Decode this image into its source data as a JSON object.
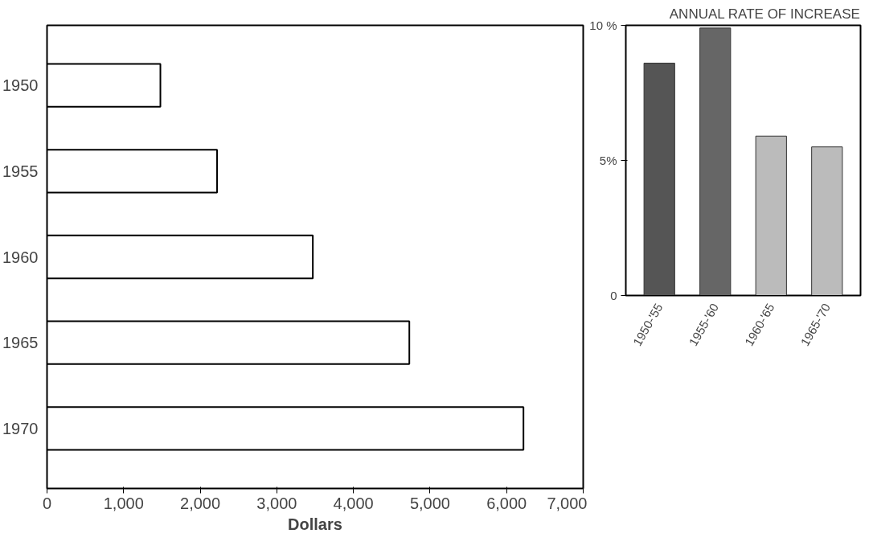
{
  "chart_data": [
    {
      "type": "bar",
      "orientation": "horizontal",
      "categories": [
        "1950",
        "1955",
        "1960",
        "1965",
        "1970"
      ],
      "values": [
        1480,
        2220,
        3470,
        4730,
        6220
      ],
      "color": "#ffffff",
      "xlabel": "Dollars",
      "xlim": [
        0,
        7000
      ],
      "xticks": [
        0,
        {
          "value": 1000,
          "label": "1,000"
        },
        {
          "value": 2000,
          "label": "2,000"
        },
        {
          "value": 3000,
          "label": "3,000"
        },
        {
          "value": 4000,
          "label": "4,000"
        },
        {
          "value": 5000,
          "label": "5,000"
        },
        {
          "value": 6000,
          "label": "6,000"
        },
        {
          "value": 7000,
          "label": "7,000"
        }
      ],
      "grid": false
    },
    {
      "type": "bar",
      "title": "ANNUAL RATE OF INCREASE",
      "categories": [
        "1950-'55",
        "1955-'60",
        "1960-'65",
        "1965-'70"
      ],
      "values": [
        8.6,
        9.9,
        5.9,
        5.5
      ],
      "colors": [
        "#555555",
        "#666666",
        "#bbbbbb",
        "#bbbbbb"
      ],
      "ylim": [
        0,
        10
      ],
      "yticks": [
        0,
        {
          "value": 5,
          "label": "5%"
        },
        {
          "value": 10,
          "label": "10 %"
        }
      ],
      "grid": false
    }
  ]
}
